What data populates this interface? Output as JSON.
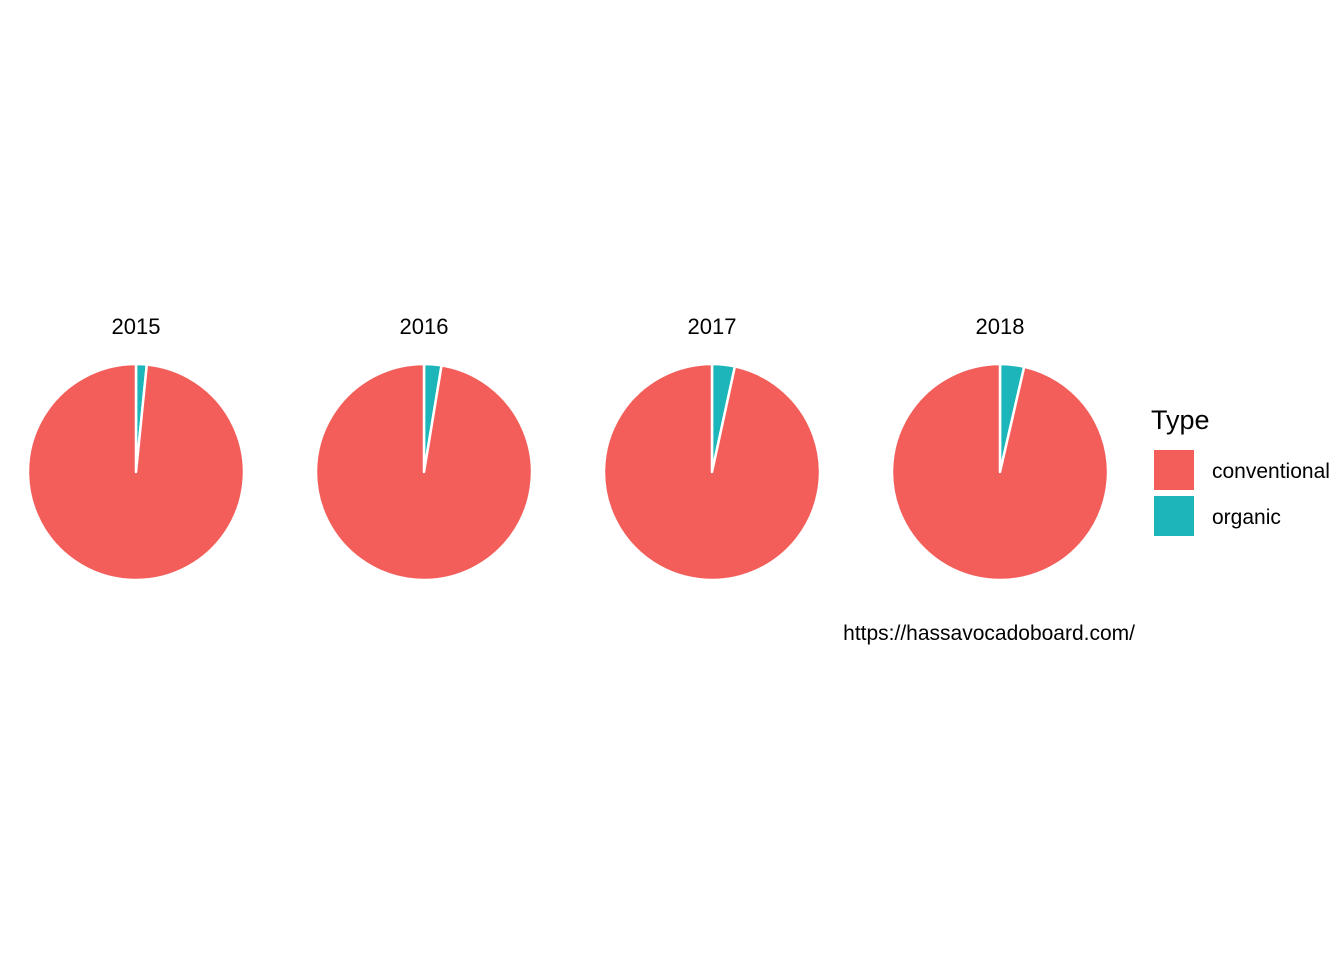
{
  "chart_data": {
    "type": "pie",
    "facets": [
      {
        "label": "2015",
        "slices": [
          {
            "name": "conventional",
            "value": 98.4
          },
          {
            "name": "organic",
            "value": 1.6
          }
        ]
      },
      {
        "label": "2016",
        "slices": [
          {
            "name": "conventional",
            "value": 97.4
          },
          {
            "name": "organic",
            "value": 2.6
          }
        ]
      },
      {
        "label": "2017",
        "slices": [
          {
            "name": "conventional",
            "value": 96.6
          },
          {
            "name": "organic",
            "value": 3.4
          }
        ]
      },
      {
        "label": "2018",
        "slices": [
          {
            "name": "conventional",
            "value": 96.4
          },
          {
            "name": "organic",
            "value": 3.6
          }
        ]
      }
    ],
    "legend": {
      "title": "Type",
      "placement": "right",
      "items": [
        {
          "name": "conventional",
          "color": "#F35E5A"
        },
        {
          "name": "organic",
          "color": "#1CB5B9"
        }
      ]
    },
    "caption": "https://hassavocadoboard.com/",
    "slice_border_color": "#ffffff"
  }
}
